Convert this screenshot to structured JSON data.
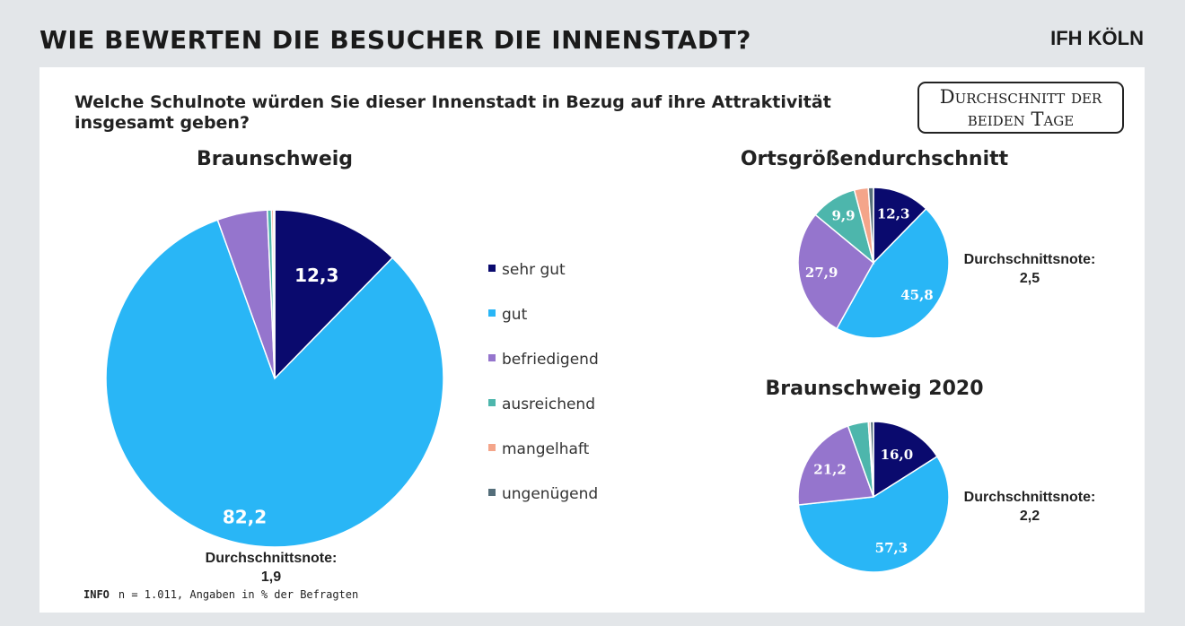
{
  "header": {
    "title": "WIE BEWERTEN DIE BESUCHER DIE INNENSTADT?",
    "brand": "IFH KÖLN"
  },
  "question": "Welche Schulnote würden Sie dieser Innenstadt in Bezug auf ihre Attraktivität insgesamt geben?",
  "badge": "Durchschnitt der beiden Tage",
  "info": {
    "label": "INFO",
    "text": "n = 1.011, Angaben in % der Befragten"
  },
  "legend": [
    {
      "label": "sehr gut",
      "color": "#0a0a6e"
    },
    {
      "label": "gut",
      "color": "#29b6f6"
    },
    {
      "label": "befriedigend",
      "color": "#9575cd"
    },
    {
      "label": "ausreichend",
      "color": "#4db6ac"
    },
    {
      "label": "mangelhaft",
      "color": "#f4a58a"
    },
    {
      "label": "ungenügend",
      "color": "#546e7a"
    }
  ],
  "chart_data": [
    {
      "type": "pie",
      "title": "Braunschweig",
      "categories": [
        "sehr gut",
        "gut",
        "befriedigend",
        "ausreichend",
        "mangelhaft",
        "ungenügend"
      ],
      "values": [
        12.3,
        82.2,
        4.8,
        0.4,
        0.2,
        0.1
      ],
      "data_labels": [
        "12,3",
        "82,2",
        "",
        "",
        "",
        ""
      ],
      "average_label": "Durchschnittsnote:",
      "average": "1,9"
    },
    {
      "type": "pie",
      "title": "Ortsgrößendurchschnitt",
      "categories": [
        "sehr gut",
        "gut",
        "befriedigend",
        "ausreichend",
        "mangelhaft",
        "ungenügend"
      ],
      "values": [
        12.3,
        45.8,
        27.9,
        9.9,
        3.0,
        1.1
      ],
      "data_labels": [
        "12,3",
        "45,8",
        "27,9",
        "9,9",
        "",
        ""
      ],
      "average_label": "Durchschnittsnote:",
      "average": "2,5"
    },
    {
      "type": "pie",
      "title": "Braunschweig 2020",
      "categories": [
        "sehr gut",
        "gut",
        "befriedigend",
        "ausreichend",
        "mangelhaft",
        "ungenügend"
      ],
      "values": [
        16.0,
        57.3,
        21.2,
        4.4,
        0.4,
        0.7
      ],
      "data_labels": [
        "16,0",
        "57,3",
        "21,2",
        "",
        "",
        ""
      ],
      "average_label": "Durchschnittsnote:",
      "average": "2,2"
    }
  ]
}
